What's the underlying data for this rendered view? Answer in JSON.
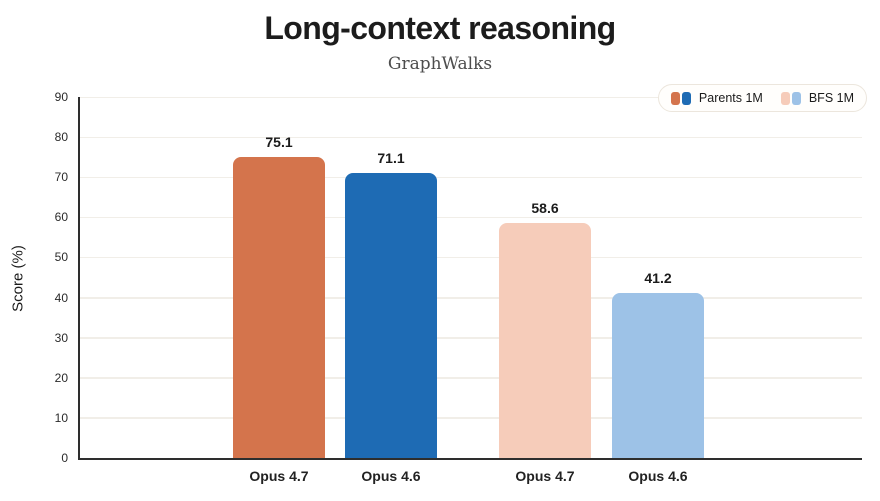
{
  "chart_data": {
    "type": "bar",
    "title": "Long-context reasoning",
    "subtitle": "GraphWalks",
    "xlabel": "",
    "ylabel": "Score (%)",
    "ylim": [
      0,
      90
    ],
    "yticks": [
      0,
      10,
      20,
      30,
      40,
      50,
      60,
      70,
      80,
      90
    ],
    "grid": true,
    "legend_position": "top-right",
    "categories": [
      "Opus 4.7",
      "Opus 4.6",
      "Opus 4.7",
      "Opus 4.6"
    ],
    "series": [
      {
        "name": "Parents 1M",
        "categories": [
          "Opus 4.7",
          "Opus 4.6"
        ],
        "values": [
          75.1,
          71.1
        ],
        "colors": [
          "#d4744c",
          "#1e6bb4"
        ]
      },
      {
        "name": "BFS 1M",
        "categories": [
          "Opus 4.7",
          "Opus 4.6"
        ],
        "values": [
          58.6,
          41.2
        ],
        "colors": [
          "#f6ccba",
          "#9dc2e7"
        ]
      }
    ]
  },
  "colors": {
    "axis": "#2e2e2e",
    "gridline": "#f1eee8",
    "text": "#1b1b1b",
    "subtitle_text": "#4d4d4d"
  }
}
